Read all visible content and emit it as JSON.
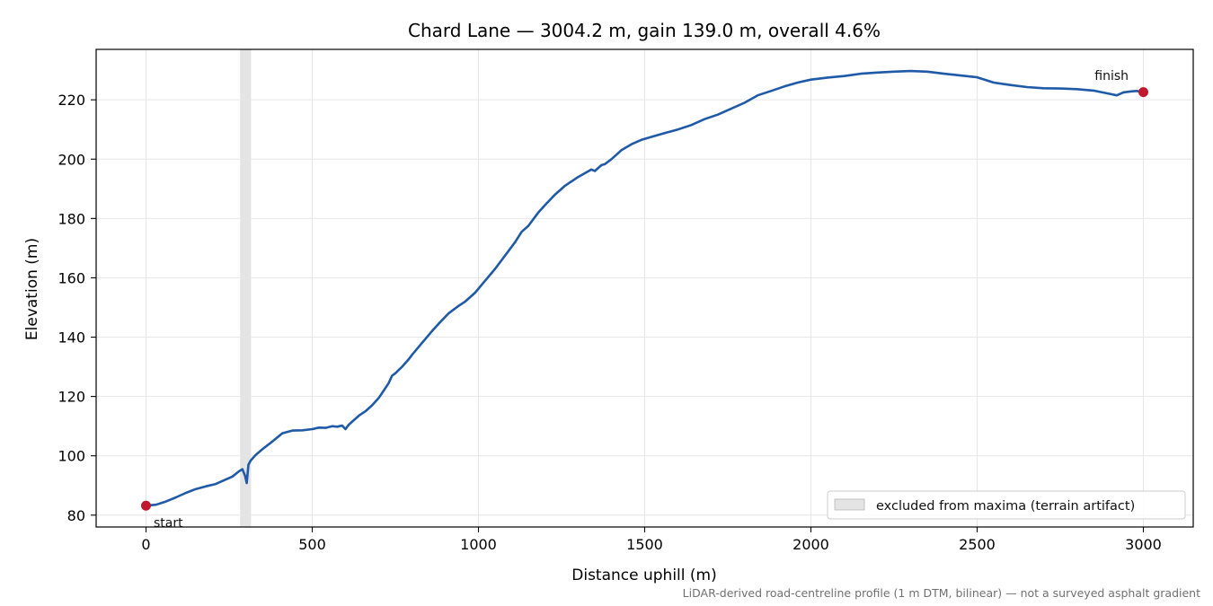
{
  "chart_data": {
    "type": "line",
    "title": "Chard Lane — 3004.2 m, gain 139.0 m, overall 4.6%",
    "xlabel": "Distance uphill (m)",
    "ylabel": "Elevation (m)",
    "xlim": [
      -150,
      3150
    ],
    "ylim": [
      76,
      237
    ],
    "xticks": [
      0,
      500,
      1000,
      1500,
      2000,
      2500,
      3000
    ],
    "yticks": [
      80,
      100,
      120,
      140,
      160,
      180,
      200,
      220
    ],
    "grid": true,
    "line_color": "#1f5aa8",
    "marker_color": "#c0182f",
    "band_color": "#d9d9d9",
    "excluded_band": [
      283,
      316
    ],
    "legend": {
      "position": "bottom-right",
      "label": "excluded from maxima (terrain artifact)"
    },
    "annotations": {
      "start": "start",
      "finish": "finish"
    },
    "footnote": "LiDAR-derived road-centreline profile (1 m DTM, bilinear) — not a surveyed asphalt gradient",
    "series": [
      {
        "x": [
          0,
          30,
          60,
          90,
          120,
          150,
          180,
          210,
          240,
          260,
          280,
          290,
          298,
          303,
          308,
          315,
          330,
          350,
          380,
          410,
          440,
          470,
          500,
          520,
          540,
          560,
          575,
          590,
          600,
          610,
          625,
          640,
          660,
          680,
          700,
          715,
          730,
          740,
          750,
          770,
          790,
          800,
          830,
          860,
          880,
          910,
          940,
          960,
          990,
          1020,
          1050,
          1080,
          1110,
          1130,
          1150,
          1180,
          1200,
          1230,
          1260,
          1300,
          1340,
          1350,
          1370,
          1380,
          1400,
          1430,
          1460,
          1490,
          1520,
          1560,
          1600,
          1640,
          1680,
          1720,
          1760,
          1800,
          1840,
          1880,
          1920,
          1960,
          2000,
          2050,
          2100,
          2150,
          2200,
          2250,
          2300,
          2350,
          2400,
          2450,
          2500,
          2550,
          2600,
          2650,
          2700,
          2750,
          2800,
          2850,
          2900,
          2920,
          2940,
          2960,
          2980,
          3000
        ],
        "y": [
          83.2,
          83.5,
          84.6,
          86.0,
          87.5,
          88.8,
          89.7,
          90.5,
          92.0,
          93.0,
          94.8,
          95.5,
          93.2,
          90.8,
          97.0,
          98.4,
          100.3,
          102.2,
          104.8,
          107.6,
          108.5,
          108.6,
          109.0,
          109.5,
          109.4,
          110.0,
          109.8,
          110.2,
          109.0,
          110.5,
          112.0,
          113.5,
          115.0,
          117.0,
          119.5,
          122.0,
          124.5,
          127.0,
          127.8,
          130.0,
          132.5,
          134.0,
          138.0,
          142.0,
          144.5,
          148.0,
          150.5,
          152.0,
          155.0,
          159.0,
          163.0,
          167.5,
          172.0,
          175.5,
          177.5,
          182.0,
          184.5,
          188.0,
          191.0,
          194.0,
          196.5,
          196.0,
          198.0,
          198.3,
          200.0,
          203.0,
          205.0,
          206.5,
          207.5,
          208.8,
          210.0,
          211.5,
          213.5,
          215.0,
          217.0,
          219.0,
          221.5,
          223.0,
          224.5,
          225.8,
          226.8,
          227.5,
          228.0,
          228.8,
          229.2,
          229.5,
          229.7,
          229.5,
          228.8,
          228.2,
          227.6,
          225.8,
          225.0,
          224.3,
          223.9,
          223.8,
          223.6,
          223.1,
          222.0,
          221.5,
          222.5,
          222.8,
          223.0,
          222.6
        ]
      }
    ]
  }
}
